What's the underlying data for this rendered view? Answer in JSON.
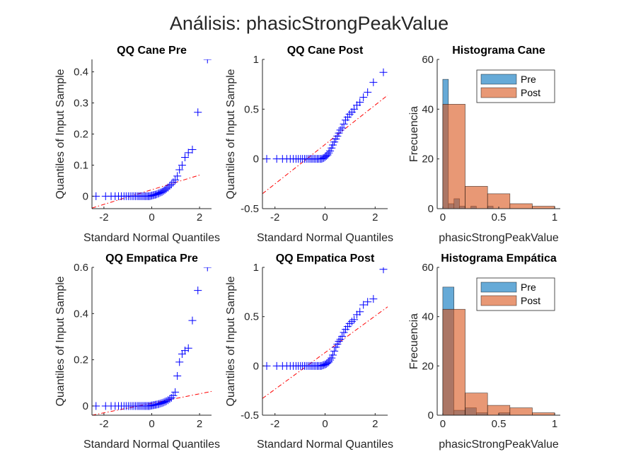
{
  "figure": {
    "title": "Análisis: phasicStrongPeakValue"
  },
  "chart_data": [
    {
      "id": "qq-cane-pre",
      "type": "scatter",
      "subtype": "qqplot",
      "title": "QQ Cane Pre",
      "xlabel": "Standard Normal Quantiles",
      "ylabel": "Quantiles of Input Sample",
      "xlim": [
        -2.5,
        2.5
      ],
      "ylim": [
        -0.04,
        0.44
      ],
      "xticks": [
        -2,
        0,
        2
      ],
      "yticks": [
        0,
        0.1,
        0.2,
        0.3,
        0.4
      ],
      "marker": "+",
      "marker_color": "#0000ff",
      "ref_line_color": "#ff0000",
      "ref_line": [
        [
          -2.5,
          -0.038
        ],
        [
          2.0,
          0.068
        ]
      ],
      "points": [
        [
          -2.33,
          0.0
        ],
        [
          -1.93,
          0.0
        ],
        [
          -1.7,
          0.0
        ],
        [
          -1.53,
          0.0
        ],
        [
          -1.39,
          0.0
        ],
        [
          -1.27,
          0.0
        ],
        [
          -1.16,
          0.0
        ],
        [
          -1.07,
          0.0
        ],
        [
          -0.98,
          0.0
        ],
        [
          -0.9,
          0.0
        ],
        [
          -0.82,
          0.0
        ],
        [
          -0.75,
          0.0
        ],
        [
          -0.68,
          0.0
        ],
        [
          -0.61,
          0.0
        ],
        [
          -0.55,
          0.0
        ],
        [
          -0.49,
          0.0
        ],
        [
          -0.43,
          0.0
        ],
        [
          -0.37,
          0.0
        ],
        [
          -0.31,
          0.0
        ],
        [
          -0.26,
          0.0
        ],
        [
          -0.2,
          0.0
        ],
        [
          -0.15,
          0.0
        ],
        [
          -0.1,
          0.0
        ],
        [
          -0.05,
          0.001
        ],
        [
          0.0,
          0.002
        ],
        [
          0.05,
          0.003
        ],
        [
          0.1,
          0.004
        ],
        [
          0.15,
          0.005
        ],
        [
          0.2,
          0.006
        ],
        [
          0.26,
          0.008
        ],
        [
          0.31,
          0.01
        ],
        [
          0.37,
          0.012
        ],
        [
          0.43,
          0.014
        ],
        [
          0.49,
          0.017
        ],
        [
          0.55,
          0.02
        ],
        [
          0.61,
          0.024
        ],
        [
          0.68,
          0.028
        ],
        [
          0.75,
          0.033
        ],
        [
          0.82,
          0.038
        ],
        [
          0.9,
          0.045
        ],
        [
          0.98,
          0.052
        ],
        [
          1.07,
          0.065
        ],
        [
          1.16,
          0.085
        ],
        [
          1.27,
          0.1
        ],
        [
          1.39,
          0.125
        ],
        [
          1.53,
          0.14
        ],
        [
          1.7,
          0.15
        ],
        [
          1.93,
          0.27
        ],
        [
          2.33,
          0.44
        ]
      ]
    },
    {
      "id": "qq-cane-post",
      "type": "scatter",
      "subtype": "qqplot",
      "title": "QQ Cane Post",
      "xlabel": "Standard Normal Quantiles",
      "ylabel": "Quantiles of Input Sample",
      "xlim": [
        -2.5,
        2.5
      ],
      "ylim": [
        -0.5,
        1.0
      ],
      "xticks": [
        -2,
        0,
        2
      ],
      "yticks": [
        -0.5,
        0,
        0.5,
        1
      ],
      "marker": "+",
      "marker_color": "#0000ff",
      "ref_line_color": "#ff0000",
      "ref_line": [
        [
          -2.5,
          -0.35
        ],
        [
          2.5,
          0.64
        ]
      ],
      "points": [
        [
          -2.33,
          0.0
        ],
        [
          -1.93,
          0.0
        ],
        [
          -1.7,
          0.0
        ],
        [
          -1.53,
          0.0
        ],
        [
          -1.39,
          0.0
        ],
        [
          -1.27,
          0.0
        ],
        [
          -1.16,
          0.0
        ],
        [
          -1.07,
          0.0
        ],
        [
          -0.98,
          0.0
        ],
        [
          -0.9,
          0.0
        ],
        [
          -0.82,
          0.0
        ],
        [
          -0.75,
          0.0
        ],
        [
          -0.68,
          0.0
        ],
        [
          -0.61,
          0.0
        ],
        [
          -0.55,
          0.0
        ],
        [
          -0.49,
          0.0
        ],
        [
          -0.43,
          0.0
        ],
        [
          -0.37,
          0.0
        ],
        [
          -0.31,
          0.0
        ],
        [
          -0.26,
          0.0
        ],
        [
          -0.2,
          0.0
        ],
        [
          -0.15,
          0.0
        ],
        [
          -0.1,
          0.005
        ],
        [
          -0.05,
          0.01
        ],
        [
          0.0,
          0.02
        ],
        [
          0.05,
          0.03
        ],
        [
          0.1,
          0.04
        ],
        [
          0.15,
          0.06
        ],
        [
          0.2,
          0.08
        ],
        [
          0.26,
          0.11
        ],
        [
          0.31,
          0.14
        ],
        [
          0.37,
          0.17
        ],
        [
          0.43,
          0.2
        ],
        [
          0.49,
          0.23
        ],
        [
          0.55,
          0.26
        ],
        [
          0.61,
          0.29
        ],
        [
          0.68,
          0.31
        ],
        [
          0.75,
          0.35
        ],
        [
          0.82,
          0.39
        ],
        [
          0.9,
          0.42
        ],
        [
          0.98,
          0.45
        ],
        [
          1.07,
          0.47
        ],
        [
          1.16,
          0.5
        ],
        [
          1.27,
          0.54
        ],
        [
          1.39,
          0.57
        ],
        [
          1.53,
          0.62
        ],
        [
          1.7,
          0.67
        ],
        [
          1.93,
          0.77
        ],
        [
          2.33,
          0.87
        ]
      ]
    },
    {
      "id": "hist-cane",
      "type": "bar",
      "subtype": "histogram",
      "title": "Histograma Cane",
      "xlabel": "phasicStrongPeakValue",
      "ylabel": "Frecuencia",
      "xlim": [
        -0.05,
        1.05
      ],
      "ylim": [
        0,
        60
      ],
      "xticks": [
        0,
        0.5,
        1
      ],
      "yticks": [
        0,
        20,
        40,
        60
      ],
      "legend": {
        "position": "top-right",
        "entries": [
          "Pre",
          "Post"
        ]
      },
      "series": [
        {
          "name": "Pre",
          "color": "#0072bd",
          "bins": [
            [
              0,
              0.05,
              52
            ],
            [
              0.05,
              0.1,
              2
            ],
            [
              0.1,
              0.15,
              4
            ],
            [
              0.15,
              0.2,
              1
            ],
            [
              0.2,
              0.25,
              0
            ],
            [
              0.25,
              0.3,
              1
            ],
            [
              0.3,
              0.35,
              0
            ],
            [
              0.35,
              0.4,
              0
            ],
            [
              0.4,
              0.45,
              1
            ]
          ]
        },
        {
          "name": "Post",
          "color": "#d95319",
          "bins": [
            [
              0,
              0.2,
              42
            ],
            [
              0.2,
              0.4,
              9
            ],
            [
              0.4,
              0.6,
              6
            ],
            [
              0.6,
              0.8,
              2
            ],
            [
              0.8,
              1.0,
              1
            ]
          ]
        }
      ]
    },
    {
      "id": "qq-empatica-pre",
      "type": "scatter",
      "subtype": "qqplot",
      "title": "QQ Empatica Pre",
      "xlabel": "Standard Normal Quantiles",
      "ylabel": "Quantiles of Input Sample",
      "xlim": [
        -2.5,
        2.5
      ],
      "ylim": [
        -0.04,
        0.6
      ],
      "xticks": [
        -2,
        0,
        2
      ],
      "yticks": [
        0,
        0.2,
        0.4,
        0.6
      ],
      "marker": "+",
      "marker_color": "#0000ff",
      "ref_line_color": "#ff0000",
      "ref_line": [
        [
          -2.5,
          -0.04
        ],
        [
          2.5,
          0.063
        ]
      ],
      "points": [
        [
          -2.33,
          0.0
        ],
        [
          -1.93,
          0.0
        ],
        [
          -1.7,
          0.0
        ],
        [
          -1.53,
          0.0
        ],
        [
          -1.39,
          0.0
        ],
        [
          -1.27,
          0.0
        ],
        [
          -1.16,
          0.0
        ],
        [
          -1.07,
          0.0
        ],
        [
          -0.98,
          0.0
        ],
        [
          -0.9,
          0.0
        ],
        [
          -0.82,
          0.0
        ],
        [
          -0.75,
          0.0
        ],
        [
          -0.68,
          0.0
        ],
        [
          -0.61,
          0.0
        ],
        [
          -0.55,
          0.0
        ],
        [
          -0.49,
          0.0
        ],
        [
          -0.43,
          0.0
        ],
        [
          -0.37,
          0.0
        ],
        [
          -0.31,
          0.0
        ],
        [
          -0.26,
          0.0
        ],
        [
          -0.2,
          0.0
        ],
        [
          -0.15,
          0.0
        ],
        [
          -0.1,
          0.0
        ],
        [
          -0.05,
          0.001
        ],
        [
          0.0,
          0.002
        ],
        [
          0.05,
          0.003
        ],
        [
          0.1,
          0.004
        ],
        [
          0.15,
          0.005
        ],
        [
          0.2,
          0.006
        ],
        [
          0.26,
          0.007
        ],
        [
          0.31,
          0.009
        ],
        [
          0.37,
          0.011
        ],
        [
          0.43,
          0.013
        ],
        [
          0.49,
          0.015
        ],
        [
          0.55,
          0.018
        ],
        [
          0.61,
          0.021
        ],
        [
          0.68,
          0.025
        ],
        [
          0.75,
          0.03
        ],
        [
          0.82,
          0.035
        ],
        [
          0.9,
          0.045
        ],
        [
          0.98,
          0.06
        ],
        [
          1.07,
          0.13
        ],
        [
          1.16,
          0.19
        ],
        [
          1.27,
          0.225
        ],
        [
          1.39,
          0.24
        ],
        [
          1.53,
          0.25
        ],
        [
          1.7,
          0.37
        ],
        [
          1.93,
          0.5
        ],
        [
          2.33,
          0.6
        ]
      ]
    },
    {
      "id": "qq-empatica-post",
      "type": "scatter",
      "subtype": "qqplot",
      "title": "QQ Empatica Post",
      "xlabel": "Standard Normal Quantiles",
      "ylabel": "Quantiles of Input Sample",
      "xlim": [
        -2.5,
        2.5
      ],
      "ylim": [
        -0.5,
        1.0
      ],
      "xticks": [
        -2,
        0,
        2
      ],
      "yticks": [
        -0.5,
        0,
        0.5,
        1
      ],
      "marker": "+",
      "marker_color": "#0000ff",
      "ref_line_color": "#ff0000",
      "ref_line": [
        [
          -2.5,
          -0.33
        ],
        [
          2.5,
          0.6
        ]
      ],
      "points": [
        [
          -2.33,
          0.0
        ],
        [
          -1.93,
          0.0
        ],
        [
          -1.7,
          0.0
        ],
        [
          -1.53,
          0.0
        ],
        [
          -1.39,
          0.0
        ],
        [
          -1.27,
          0.0
        ],
        [
          -1.16,
          0.0
        ],
        [
          -1.07,
          0.0
        ],
        [
          -0.98,
          0.0
        ],
        [
          -0.9,
          0.0
        ],
        [
          -0.82,
          0.0
        ],
        [
          -0.75,
          0.0
        ],
        [
          -0.68,
          0.0
        ],
        [
          -0.61,
          0.0
        ],
        [
          -0.55,
          0.0
        ],
        [
          -0.49,
          0.0
        ],
        [
          -0.43,
          0.0
        ],
        [
          -0.37,
          0.0
        ],
        [
          -0.31,
          0.0
        ],
        [
          -0.26,
          0.0
        ],
        [
          -0.2,
          0.0
        ],
        [
          -0.15,
          0.0
        ],
        [
          -0.1,
          0.005
        ],
        [
          -0.05,
          0.01
        ],
        [
          0.0,
          0.015
        ],
        [
          0.05,
          0.02
        ],
        [
          0.1,
          0.03
        ],
        [
          0.15,
          0.04
        ],
        [
          0.2,
          0.06
        ],
        [
          0.26,
          0.08
        ],
        [
          0.31,
          0.11
        ],
        [
          0.37,
          0.15
        ],
        [
          0.43,
          0.19
        ],
        [
          0.49,
          0.22
        ],
        [
          0.55,
          0.25
        ],
        [
          0.61,
          0.27
        ],
        [
          0.68,
          0.3
        ],
        [
          0.75,
          0.34
        ],
        [
          0.82,
          0.37
        ],
        [
          0.9,
          0.4
        ],
        [
          0.98,
          0.43
        ],
        [
          1.07,
          0.45
        ],
        [
          1.16,
          0.47
        ],
        [
          1.27,
          0.52
        ],
        [
          1.39,
          0.55
        ],
        [
          1.53,
          0.62
        ],
        [
          1.7,
          0.65
        ],
        [
          1.93,
          0.68
        ],
        [
          2.33,
          0.98
        ]
      ]
    },
    {
      "id": "hist-empatica",
      "type": "bar",
      "subtype": "histogram",
      "title": "Histograma Empática",
      "xlabel": "phasicStrongPeakValue",
      "ylabel": "Frecuencia",
      "xlim": [
        -0.05,
        1.05
      ],
      "ylim": [
        0,
        60
      ],
      "xticks": [
        0,
        0.5,
        1
      ],
      "yticks": [
        0,
        20,
        40,
        60
      ],
      "legend": {
        "position": "top-right",
        "entries": [
          "Pre",
          "Post"
        ]
      },
      "series": [
        {
          "name": "Pre",
          "color": "#0072bd",
          "bins": [
            [
              0,
              0.1,
              52
            ],
            [
              0.1,
              0.2,
              2
            ],
            [
              0.2,
              0.3,
              3
            ],
            [
              0.3,
              0.4,
              1
            ],
            [
              0.4,
              0.5,
              0
            ],
            [
              0.5,
              0.6,
              1
            ]
          ]
        },
        {
          "name": "Post",
          "color": "#d95319",
          "bins": [
            [
              0,
              0.2,
              43
            ],
            [
              0.2,
              0.4,
              9
            ],
            [
              0.4,
              0.6,
              4
            ],
            [
              0.6,
              0.8,
              3
            ],
            [
              0.8,
              1.0,
              1
            ]
          ]
        }
      ]
    }
  ]
}
